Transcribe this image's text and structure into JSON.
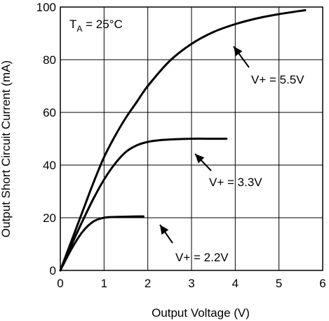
{
  "chart_data": {
    "type": "line",
    "xlabel": "Output Voltage (V)",
    "ylabel": "Output Short Circuit Current (mA)",
    "xlim": [
      0,
      6
    ],
    "ylim": [
      0,
      100
    ],
    "x_ticks": [
      "0",
      "1",
      "2",
      "3",
      "4",
      "5",
      "6"
    ],
    "y_ticks": [
      "0",
      "20",
      "40",
      "60",
      "80",
      "100"
    ],
    "grid": true,
    "condition_prefix": "T",
    "condition_subscript": "A",
    "condition_suffix": " = 25°C",
    "series": [
      {
        "name": "V+ = 5.5V",
        "x": [
          0,
          0.25,
          0.5,
          0.75,
          1.0,
          1.25,
          1.5,
          1.75,
          2.0,
          2.5,
          3.0,
          3.5,
          4.0,
          4.5,
          5.0,
          5.6
        ],
        "y": [
          0,
          11,
          22,
          33,
          43,
          51,
          58,
          64,
          70,
          79.5,
          86,
          90.5,
          93.5,
          95.7,
          97.3,
          98.8
        ]
      },
      {
        "name": "V+ = 3.3V",
        "x": [
          0,
          0.25,
          0.5,
          0.75,
          1.0,
          1.25,
          1.5,
          1.75,
          2.0,
          2.25,
          2.5,
          3.0,
          3.5,
          3.8
        ],
        "y": [
          0,
          9.5,
          18.5,
          27,
          34.5,
          40.5,
          45,
          47.5,
          48.8,
          49.4,
          49.7,
          50,
          50,
          50
        ]
      },
      {
        "name": "V+ = 2.2V",
        "x": [
          0,
          0.25,
          0.5,
          0.75,
          1.0,
          1.25,
          1.5,
          1.75,
          1.9
        ],
        "y": [
          0,
          8,
          14.5,
          18.5,
          20,
          20.3,
          20.4,
          20.5,
          20.5
        ]
      }
    ]
  }
}
